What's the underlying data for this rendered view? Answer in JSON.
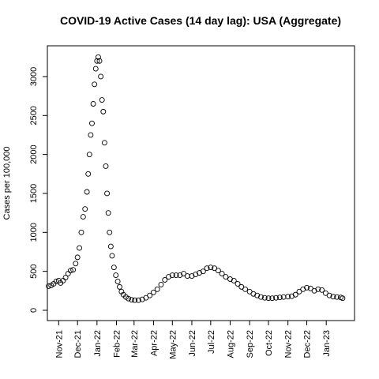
{
  "chart_data": {
    "type": "scatter",
    "title": "COVID-19 Active Cases (14 day lag): USA (Aggregate)",
    "y_label": "Cases per 100,000",
    "x": [
      "2021-10-16",
      "2021-10-20",
      "2021-10-24",
      "2021-10-28",
      "2021-11-01",
      "2021-11-04",
      "2021-11-08",
      "2021-11-12",
      "2021-11-16",
      "2021-11-20",
      "2021-11-24",
      "2021-11-28",
      "2021-12-01",
      "2021-12-04",
      "2021-12-07",
      "2021-12-10",
      "2021-12-13",
      "2021-12-16",
      "2021-12-18",
      "2021-12-20",
      "2021-12-22",
      "2021-12-24",
      "2021-12-26",
      "2021-12-28",
      "2021-12-30",
      "2022-01-01",
      "2022-01-03",
      "2022-01-05",
      "2022-01-07",
      "2022-01-09",
      "2022-01-11",
      "2022-01-13",
      "2022-01-15",
      "2022-01-17",
      "2022-01-19",
      "2022-01-21",
      "2022-01-23",
      "2022-01-25",
      "2022-01-28",
      "2022-01-31",
      "2022-02-03",
      "2022-02-06",
      "2022-02-09",
      "2022-02-12",
      "2022-02-16",
      "2022-02-20",
      "2022-02-25",
      "2022-03-02",
      "2022-03-08",
      "2022-03-14",
      "2022-03-20",
      "2022-03-26",
      "2022-04-01",
      "2022-04-07",
      "2022-04-13",
      "2022-04-19",
      "2022-04-25",
      "2022-05-01",
      "2022-05-07",
      "2022-05-13",
      "2022-05-19",
      "2022-05-25",
      "2022-06-01",
      "2022-06-07",
      "2022-06-13",
      "2022-06-19",
      "2022-06-25",
      "2022-07-01",
      "2022-07-07",
      "2022-07-13",
      "2022-07-19",
      "2022-07-25",
      "2022-08-01",
      "2022-08-07",
      "2022-08-13",
      "2022-08-19",
      "2022-08-25",
      "2022-09-01",
      "2022-09-07",
      "2022-09-13",
      "2022-09-19",
      "2022-09-25",
      "2022-10-01",
      "2022-10-07",
      "2022-10-13",
      "2022-10-19",
      "2022-10-25",
      "2022-11-01",
      "2022-11-07",
      "2022-11-13",
      "2022-11-19",
      "2022-11-25",
      "2022-12-01",
      "2022-12-07",
      "2022-12-13",
      "2022-12-19",
      "2022-12-25",
      "2022-12-31",
      "2023-01-06",
      "2023-01-12",
      "2023-01-18",
      "2023-01-24",
      "2023-01-27"
    ],
    "values": [
      310,
      320,
      340,
      370,
      380,
      350,
      380,
      420,
      470,
      510,
      520,
      600,
      680,
      800,
      1000,
      1200,
      1300,
      1520,
      1750,
      2000,
      2250,
      2400,
      2650,
      2900,
      3100,
      3200,
      3250,
      3200,
      3000,
      2700,
      2550,
      2150,
      1850,
      1500,
      1250,
      1000,
      820,
      700,
      550,
      450,
      370,
      300,
      240,
      200,
      170,
      150,
      135,
      130,
      130,
      140,
      160,
      190,
      230,
      270,
      330,
      390,
      430,
      450,
      450,
      450,
      470,
      440,
      440,
      460,
      480,
      500,
      540,
      550,
      540,
      510,
      470,
      430,
      400,
      380,
      340,
      300,
      270,
      240,
      210,
      190,
      170,
      160,
      155,
      155,
      160,
      165,
      170,
      175,
      180,
      200,
      240,
      270,
      290,
      280,
      250,
      270,
      260,
      220,
      190,
      175,
      170,
      165,
      155
    ],
    "xlim": [
      "2021-10-14",
      "2023-02-15"
    ],
    "xticks": [
      {
        "value": "2021-11-01",
        "label": "Nov-21"
      },
      {
        "value": "2021-12-01",
        "label": "Dec-21"
      },
      {
        "value": "2022-01-01",
        "label": "Jan-22"
      },
      {
        "value": "2022-02-01",
        "label": "Feb-22"
      },
      {
        "value": "2022-03-01",
        "label": "Mar-22"
      },
      {
        "value": "2022-04-01",
        "label": "Apr-22"
      },
      {
        "value": "2022-05-01",
        "label": "May-22"
      },
      {
        "value": "2022-06-01",
        "label": "Jun-22"
      },
      {
        "value": "2022-07-01",
        "label": "Jul-22"
      },
      {
        "value": "2022-08-01",
        "label": "Aug-22"
      },
      {
        "value": "2022-09-01",
        "label": "Sep-22"
      },
      {
        "value": "2022-10-01",
        "label": "Oct-22"
      },
      {
        "value": "2022-11-01",
        "label": "Nov-22"
      },
      {
        "value": "2022-12-01",
        "label": "Dec-22"
      },
      {
        "value": "2023-01-01",
        "label": "Jan-23"
      }
    ],
    "ylim": [
      -132,
      3395
    ],
    "yticks": [
      0,
      500,
      1000,
      1500,
      2000,
      2500,
      3000
    ],
    "color": "#000000"
  }
}
